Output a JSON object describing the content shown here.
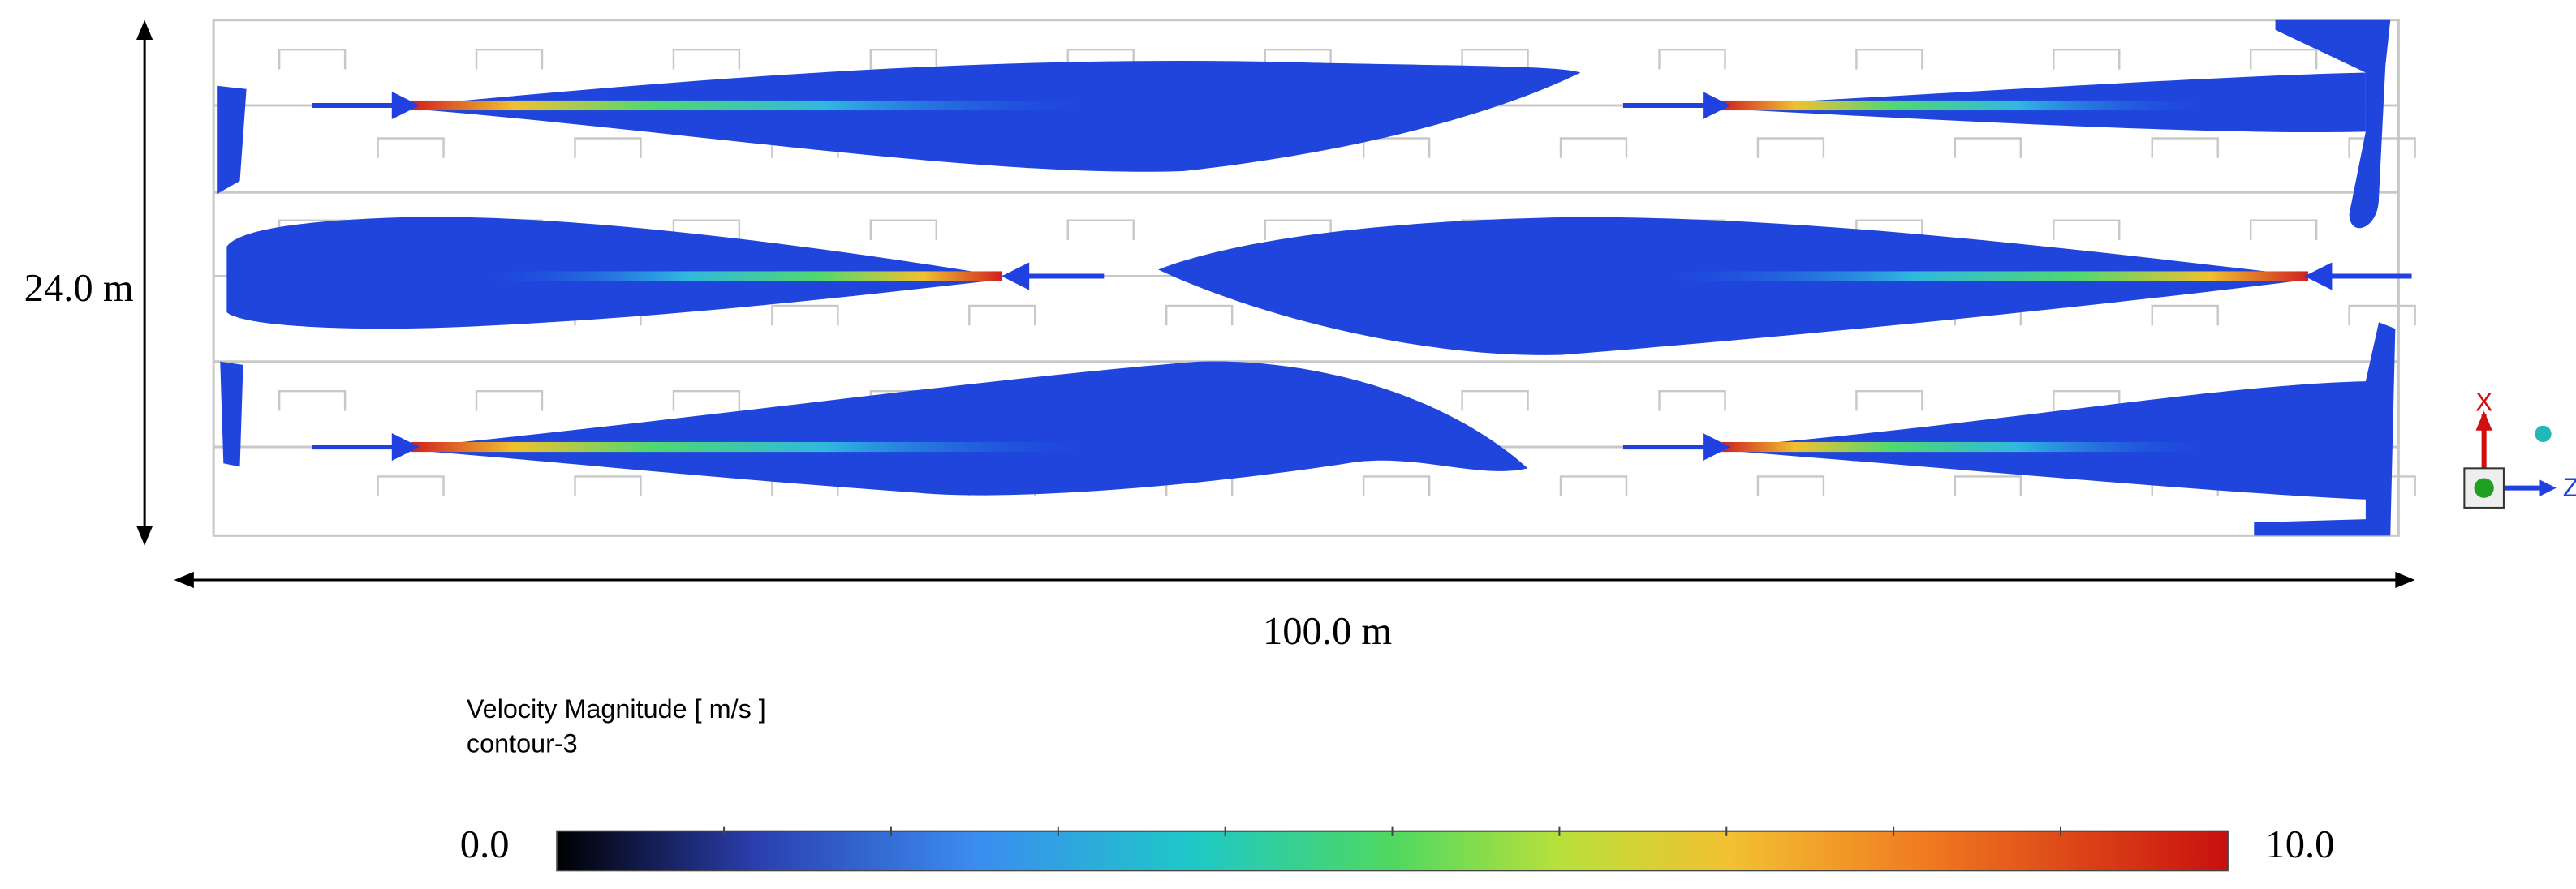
{
  "dimensions": {
    "height": "24.0 m",
    "length": "100.0 m"
  },
  "legend": {
    "title": "Velocity Magnitude [ m/s ]",
    "subtitle": "contour-3",
    "min_label": "0.0",
    "max_label": "10.0"
  },
  "triad": {
    "x": "X",
    "z": "Z"
  }
}
